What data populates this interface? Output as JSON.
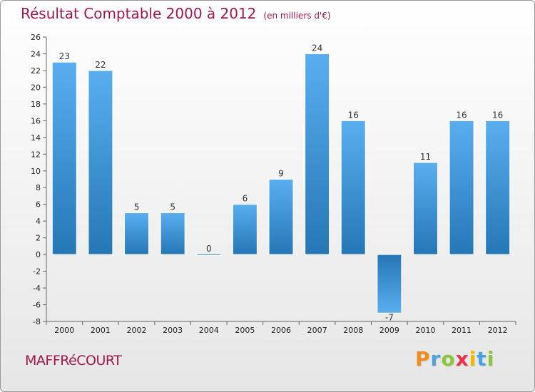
{
  "page": {
    "title": "Résultat Comptable 2000 à 2012",
    "subtitle": "(en milliers d'€)",
    "place": "MAFFRéCOURT",
    "logo": {
      "letters": [
        "P",
        "r",
        "o",
        "x",
        "i",
        "t",
        "i"
      ],
      "colors": [
        "#f28c1f",
        "#4aa3df",
        "#8cc63f",
        "#e8344e",
        "#f5b800",
        "#4aa3df",
        "#8cc63f"
      ]
    }
  },
  "colors": {
    "title": "#a3164d",
    "bar_light": "#5aaef0",
    "bar_dark": "#2577b5",
    "axis": "#666666",
    "grid": "#cccccc"
  },
  "chart_data": {
    "type": "bar",
    "title": "Résultat Comptable 2000 à 2012",
    "subtitle": "(en milliers d'€)",
    "categories": [
      "2000",
      "2001",
      "2002",
      "2003",
      "2004",
      "2005",
      "2006",
      "2007",
      "2008",
      "2009",
      "2010",
      "2011",
      "2012"
    ],
    "values": [
      23,
      22,
      5,
      5,
      0,
      6,
      9,
      24,
      16,
      -7,
      11,
      16,
      16
    ],
    "ylim": [
      -8,
      26
    ],
    "yticks": [
      -8,
      -6,
      -4,
      -2,
      0,
      2,
      4,
      6,
      8,
      10,
      12,
      14,
      16,
      18,
      20,
      22,
      24,
      26
    ],
    "xlabel": "",
    "ylabel": ""
  }
}
